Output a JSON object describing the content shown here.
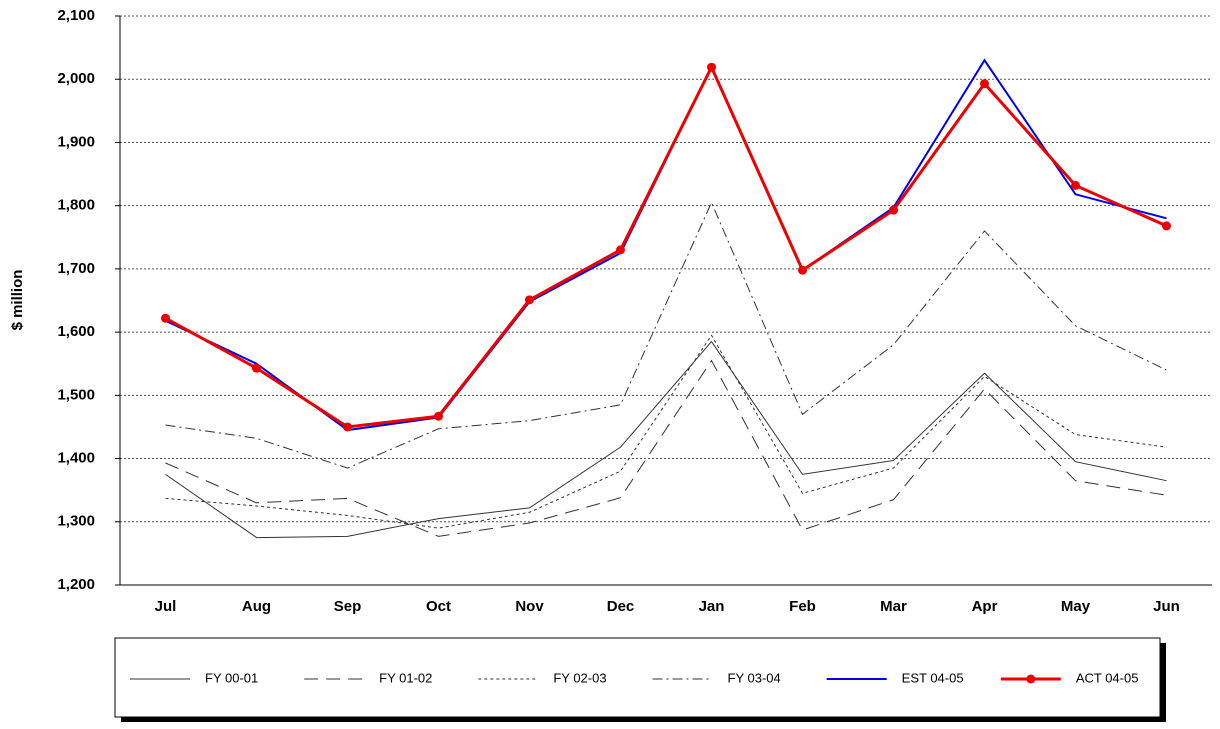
{
  "chart_data": {
    "type": "line",
    "y_label": "$ million",
    "categories": [
      "Jul",
      "Aug",
      "Sep",
      "Oct",
      "Nov",
      "Dec",
      "Jan",
      "Feb",
      "Mar",
      "Apr",
      "May",
      "Jun"
    ],
    "ylim": [
      1200,
      2100
    ],
    "yticks": [
      {
        "value": 1200,
        "label": "1,200"
      },
      {
        "value": 1300,
        "label": "1,300"
      },
      {
        "value": 1400,
        "label": "1,400"
      },
      {
        "value": 1500,
        "label": "1,500"
      },
      {
        "value": 1600,
        "label": "1,600"
      },
      {
        "value": 1700,
        "label": "1,700"
      },
      {
        "value": 1800,
        "label": "1,800"
      },
      {
        "value": 1900,
        "label": "1,900"
      },
      {
        "value": 2000,
        "label": "2,000"
      },
      {
        "value": 2100,
        "label": "2,100"
      }
    ],
    "grid": true,
    "legend": "bottom",
    "series": [
      {
        "name": "FY 00-01",
        "color": "#333333",
        "dash": "solid",
        "values": [
          1375,
          1275,
          1277,
          1305,
          1322,
          1418,
          1585,
          1375,
          1397,
          1535,
          1395,
          1365
        ]
      },
      {
        "name": "FY 01-02",
        "color": "#333333",
        "dash": "dashed",
        "values": [
          1393,
          1330,
          1337,
          1277,
          1298,
          1338,
          1555,
          1287,
          1335,
          1510,
          1365,
          1342
        ]
      },
      {
        "name": "FY 02-03",
        "color": "#333333",
        "dash": "dotted",
        "values": [
          1337,
          1325,
          1310,
          1290,
          1315,
          1380,
          1595,
          1345,
          1385,
          1530,
          1438,
          1418
        ]
      },
      {
        "name": "FY 03-04",
        "color": "#333333",
        "dash": "dashdot",
        "values": [
          1453,
          1432,
          1385,
          1447,
          1460,
          1485,
          1805,
          1470,
          1580,
          1760,
          1610,
          1540
        ]
      },
      {
        "name": "EST 04-05",
        "color": "#0000ee",
        "dash": "solid",
        "values": [
          1618,
          1550,
          1445,
          1465,
          1648,
          1725,
          2020,
          1698,
          1797,
          2030,
          1818,
          1780
        ]
      },
      {
        "name": "ACT 04-05",
        "color": "#ee0000",
        "dash": "solid",
        "marker": true,
        "values": [
          1622,
          1543,
          1450,
          1467,
          1651,
          1730,
          2019,
          1698,
          1793,
          1993,
          1832,
          1768
        ]
      }
    ]
  }
}
